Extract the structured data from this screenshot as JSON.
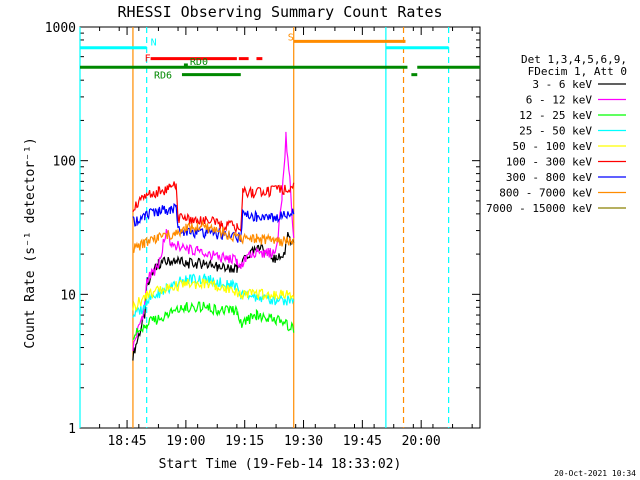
{
  "chart_data": {
    "type": "line",
    "title": "RHESSI Observing Summary Count Rates",
    "xlabel": "Start Time (19-Feb-14 18:33:02)",
    "ylabel": "Count Rate (s⁻¹ detector⁻¹)",
    "yscale": "log",
    "ylim": [
      1,
      1000
    ],
    "xlim_min": [
      0,
      102
    ],
    "x_ticks": [
      {
        "min": 12,
        "label": "18:45"
      },
      {
        "min": 27,
        "label": "19:00"
      },
      {
        "min": 42,
        "label": "19:15"
      },
      {
        "min": 57,
        "label": "19:30"
      },
      {
        "min": 72,
        "label": "19:45"
      },
      {
        "min": 87,
        "label": "20:00"
      }
    ],
    "y_ticks": [
      {
        "value": 1,
        "label": "1"
      },
      {
        "value": 10,
        "label": "10"
      },
      {
        "value": 100,
        "label": "100"
      },
      {
        "value": 1000,
        "label": "1000"
      }
    ],
    "legend_header": [
      "Det 1,3,4,5,6,9,",
      "FDecim 1, Att 0"
    ],
    "legend_position": "right",
    "series": [
      {
        "name": "3 - 6 keV",
        "color": "#000000",
        "points": [
          [
            13.5,
            3.5
          ],
          [
            16.5,
            7
          ],
          [
            17,
            12
          ],
          [
            20,
            17
          ],
          [
            24,
            18
          ],
          [
            27,
            17
          ],
          [
            31,
            17
          ],
          [
            35,
            16
          ],
          [
            40,
            15.5
          ],
          [
            41,
            16
          ],
          [
            42,
            19
          ],
          [
            46,
            22
          ],
          [
            50,
            18
          ],
          [
            52,
            20
          ],
          [
            53,
            27
          ],
          [
            54,
            24
          ],
          [
            54.5,
            25
          ]
        ]
      },
      {
        "name": "6 - 12 keV",
        "color": "#ff00ff",
        "points": [
          [
            13.5,
            4
          ],
          [
            16.5,
            8
          ],
          [
            17,
            13
          ],
          [
            20,
            16
          ],
          [
            22,
            30
          ],
          [
            23,
            25
          ],
          [
            26,
            22
          ],
          [
            30,
            21
          ],
          [
            35,
            19
          ],
          [
            40,
            18
          ],
          [
            41,
            16
          ],
          [
            43,
            20
          ],
          [
            47,
            20
          ],
          [
            50,
            21
          ],
          [
            51.5,
            50
          ],
          [
            52.5,
            150
          ],
          [
            53.5,
            70
          ],
          [
            54.5,
            28
          ]
        ]
      },
      {
        "name": "12 - 25 keV",
        "color": "#00ff00",
        "points": [
          [
            13.5,
            5
          ],
          [
            16.5,
            5.5
          ],
          [
            17,
            6
          ],
          [
            22,
            7
          ],
          [
            27,
            8
          ],
          [
            32,
            8
          ],
          [
            37,
            7.5
          ],
          [
            40,
            7.5
          ],
          [
            41,
            6
          ],
          [
            45,
            7
          ],
          [
            50,
            6.5
          ],
          [
            54.5,
            5.5
          ]
        ]
      },
      {
        "name": "25 - 50 keV",
        "color": "#00ffff",
        "points": [
          [
            13.5,
            7
          ],
          [
            16.5,
            8
          ],
          [
            17,
            9
          ],
          [
            22,
            11
          ],
          [
            27,
            13
          ],
          [
            32,
            13
          ],
          [
            37,
            12
          ],
          [
            40,
            11.5
          ],
          [
            41,
            10
          ],
          [
            45,
            9.5
          ],
          [
            50,
            9
          ],
          [
            54.5,
            9
          ]
        ]
      },
      {
        "name": "50 - 100 keV",
        "color": "#ffff00",
        "points": [
          [
            13.5,
            8
          ],
          [
            16.5,
            9.5
          ],
          [
            17,
            10
          ],
          [
            22,
            11
          ],
          [
            27,
            12
          ],
          [
            32,
            12
          ],
          [
            37,
            11
          ],
          [
            40,
            10.5
          ],
          [
            41,
            10
          ],
          [
            45,
            10
          ],
          [
            50,
            10
          ],
          [
            54.5,
            10
          ]
        ]
      },
      {
        "name": "100 - 300 keV",
        "color": "#ff0000",
        "points": [
          [
            13.5,
            45
          ],
          [
            16.5,
            52
          ],
          [
            17,
            55
          ],
          [
            20,
            58
          ],
          [
            23,
            62
          ],
          [
            24.5,
            65
          ],
          [
            25,
            37
          ],
          [
            28,
            36
          ],
          [
            32,
            36
          ],
          [
            36,
            33
          ],
          [
            40,
            32
          ],
          [
            41,
            30
          ],
          [
            41.5,
            58
          ],
          [
            44,
            57
          ],
          [
            48,
            59
          ],
          [
            52,
            60
          ],
          [
            54.5,
            65
          ]
        ]
      },
      {
        "name": "300 - 800 keV",
        "color": "#0000ff",
        "points": [
          [
            13.5,
            35
          ],
          [
            16.5,
            38
          ],
          [
            17,
            40
          ],
          [
            20,
            42
          ],
          [
            23,
            43
          ],
          [
            24.5,
            45
          ],
          [
            25,
            30
          ],
          [
            28,
            29
          ],
          [
            32,
            29
          ],
          [
            36,
            28
          ],
          [
            40,
            27
          ],
          [
            41,
            26
          ],
          [
            41.5,
            40
          ],
          [
            45,
            38
          ],
          [
            50,
            37
          ],
          [
            54.5,
            42
          ]
        ]
      },
      {
        "name": "800 - 7000 keV",
        "color": "#ff8c00",
        "points": [
          [
            13.5,
            22
          ],
          [
            16.5,
            24
          ],
          [
            17,
            25
          ],
          [
            20,
            27
          ],
          [
            24,
            28
          ],
          [
            27,
            31
          ],
          [
            30,
            32
          ],
          [
            34,
            31
          ],
          [
            38,
            28
          ],
          [
            40,
            27
          ],
          [
            41,
            26
          ],
          [
            45,
            26
          ],
          [
            50,
            25
          ],
          [
            54.5,
            25
          ]
        ]
      },
      {
        "name": "7000 - 15000 keV",
        "color": "#8b8000",
        "points": []
      }
    ],
    "flags": {
      "N": {
        "label": "N",
        "color": "#00ffff",
        "level": 700,
        "segments": [
          [
            0,
            17
          ],
          [
            78,
            94
          ]
        ]
      },
      "F": {
        "label": "F",
        "color": "#ff0000",
        "level": 580,
        "segments": [
          [
            18,
            40
          ],
          [
            40.5,
            43
          ],
          [
            45,
            46.5
          ]
        ]
      },
      "RD0": {
        "label": "RD0",
        "color": "#008800",
        "level": 520,
        "segments": [
          [
            26.5,
            27.5
          ]
        ]
      },
      "S": {
        "label": "S",
        "color": "#ff8c00",
        "level": 780,
        "segments": [
          [
            54.5,
            83
          ]
        ]
      },
      "RD6": {
        "label": "RD6",
        "color": "#008800",
        "level": 440,
        "segments": [
          [
            26,
            41
          ],
          [
            84.5,
            86
          ]
        ]
      },
      "saa_line": {
        "color": "#008800",
        "level": 500,
        "segments": [
          [
            0,
            83.5
          ],
          [
            86,
            102
          ]
        ]
      }
    },
    "vlines": [
      {
        "min": 0,
        "color": "#00ffff",
        "style": "solid"
      },
      {
        "min": 17,
        "color": "#00ffff",
        "style": "dashed"
      },
      {
        "min": 13.5,
        "color": "#ff8c00",
        "style": "solid"
      },
      {
        "min": 54.5,
        "color": "#ff8c00",
        "style": "solid"
      },
      {
        "min": 78,
        "color": "#00ffff",
        "style": "solid"
      },
      {
        "min": 82.5,
        "color": "#ff8c00",
        "style": "dashed"
      },
      {
        "min": 94,
        "color": "#00ffff",
        "style": "dashed"
      }
    ],
    "footer_timestamp": "20-Oct-2021 10:34"
  }
}
